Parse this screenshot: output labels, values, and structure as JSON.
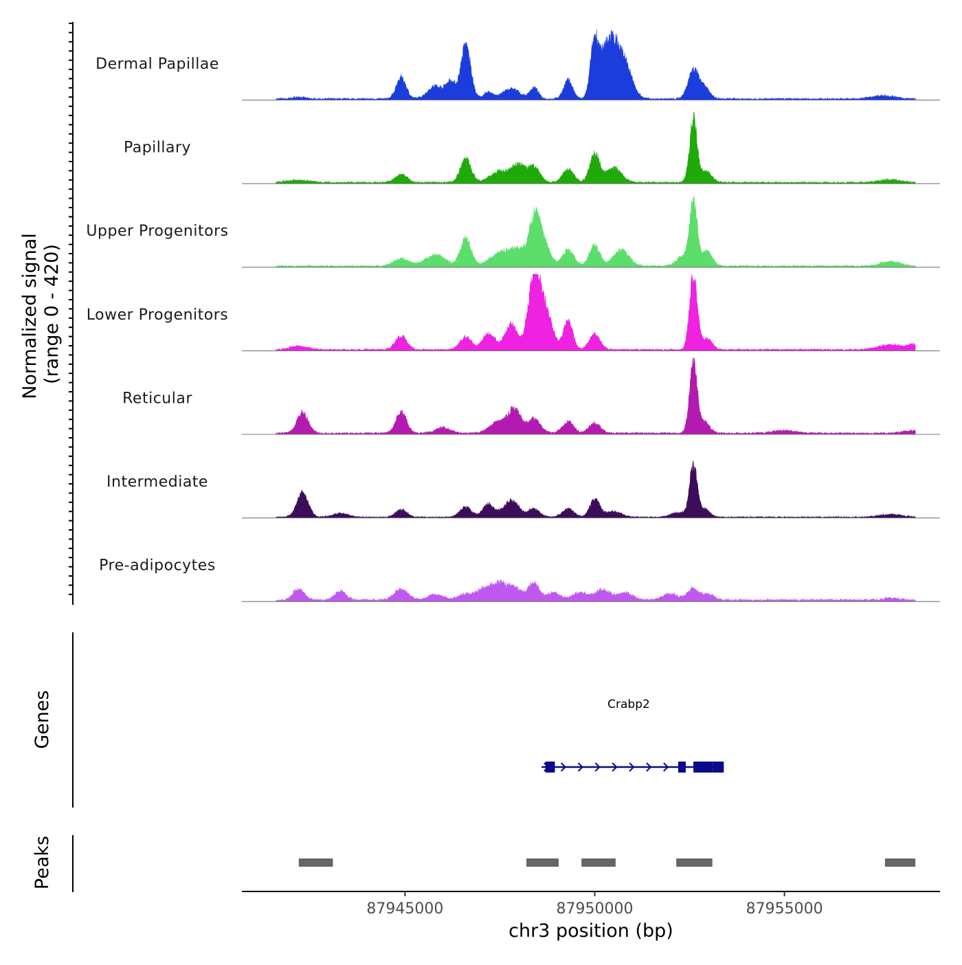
{
  "chart_data": {
    "type": "area",
    "title": "",
    "ylabel": "Normalized signal",
    "ylabel_range": "(range 0 - 420)",
    "y_range": [
      0,
      420
    ],
    "xlabel": "chr3 position (bp)",
    "chromosome": "chr3",
    "x_range": [
      87940700,
      87959100
    ],
    "x_ticks": [
      87945000,
      87950000,
      87955000
    ],
    "x_tick_labels": [
      "87945000",
      "87950000",
      "87955000"
    ],
    "genes_label": "Genes",
    "peaks_label": "Peaks",
    "gene": {
      "name": "Crabp2",
      "start": 87948600,
      "end": 87953400,
      "strand": "+",
      "color": "#0a0a8a",
      "exons": [
        [
          87948700,
          87948950
        ],
        [
          87952200,
          87952400
        ],
        [
          87952600,
          87953100
        ],
        [
          87953100,
          87953400
        ]
      ]
    },
    "peaks": [
      [
        87942200,
        87943100
      ],
      [
        87948200,
        87949050
      ],
      [
        87949650,
        87950550
      ],
      [
        87952150,
        87953100
      ],
      [
        87957650,
        87958450
      ]
    ],
    "peak_color": "#666666",
    "data_start": 87941600,
    "data_end": 87958450,
    "tracks": [
      {
        "name": "Dermal Papillae",
        "color": "#1a3ddb",
        "baseline": 8,
        "peaks": [
          [
            87942200,
            10,
            150
          ],
          [
            87944900,
            115,
            130
          ],
          [
            87945800,
            70,
            200
          ],
          [
            87946200,
            90,
            120
          ],
          [
            87946600,
            290,
            130
          ],
          [
            87947200,
            35,
            130
          ],
          [
            87947800,
            55,
            220
          ],
          [
            87948400,
            60,
            110
          ],
          [
            87949300,
            100,
            120
          ],
          [
            87950000,
            310,
            110
          ],
          [
            87950300,
            160,
            160
          ],
          [
            87950500,
            210,
            200
          ],
          [
            87950800,
            150,
            200
          ],
          [
            87952600,
            160,
            140
          ],
          [
            87952900,
            60,
            130
          ],
          [
            87957600,
            18,
            300
          ]
        ]
      },
      {
        "name": "Papillary",
        "color": "#1faa0a",
        "baseline": 8,
        "peaks": [
          [
            87942200,
            12,
            300
          ],
          [
            87944900,
            45,
            160
          ],
          [
            87946600,
            130,
            140
          ],
          [
            87947500,
            60,
            250
          ],
          [
            87948000,
            90,
            180
          ],
          [
            87948400,
            80,
            160
          ],
          [
            87949300,
            70,
            150
          ],
          [
            87950000,
            155,
            130
          ],
          [
            87950500,
            80,
            200
          ],
          [
            87952600,
            340,
            100
          ],
          [
            87952950,
            60,
            140
          ],
          [
            87957800,
            15,
            300
          ]
        ]
      },
      {
        "name": "Upper Progenitors",
        "color": "#5bde6a",
        "baseline": 8,
        "peaks": [
          [
            87944900,
            40,
            200
          ],
          [
            87945800,
            60,
            260
          ],
          [
            87946600,
            150,
            140
          ],
          [
            87947500,
            70,
            260
          ],
          [
            87948000,
            90,
            220
          ],
          [
            87948400,
            180,
            130
          ],
          [
            87948600,
            160,
            180
          ],
          [
            87949300,
            90,
            150
          ],
          [
            87950000,
            110,
            140
          ],
          [
            87950700,
            90,
            200
          ],
          [
            87952300,
            50,
            150
          ],
          [
            87952600,
            350,
            100
          ],
          [
            87952950,
            80,
            140
          ],
          [
            87957800,
            25,
            250
          ]
        ]
      },
      {
        "name": "Lower Progenitors",
        "color": "#ee22e0",
        "baseline": 8,
        "peaks": [
          [
            87942200,
            18,
            250
          ],
          [
            87944900,
            75,
            150
          ],
          [
            87946600,
            70,
            150
          ],
          [
            87947200,
            90,
            160
          ],
          [
            87947800,
            140,
            170
          ],
          [
            87948400,
            390,
            150
          ],
          [
            87948700,
            200,
            180
          ],
          [
            87949300,
            160,
            120
          ],
          [
            87950000,
            85,
            140
          ],
          [
            87952600,
            410,
            100
          ],
          [
            87952950,
            60,
            140
          ],
          [
            87957800,
            28,
            300
          ],
          [
            87958400,
            24,
            150
          ]
        ]
      },
      {
        "name": "Reticular",
        "color": "#b21ab0",
        "baseline": 8,
        "peaks": [
          [
            87942300,
            110,
            150
          ],
          [
            87944900,
            115,
            140
          ],
          [
            87946000,
            30,
            200
          ],
          [
            87947500,
            65,
            250
          ],
          [
            87947900,
            120,
            150
          ],
          [
            87948400,
            80,
            170
          ],
          [
            87949300,
            60,
            150
          ],
          [
            87950000,
            55,
            150
          ],
          [
            87952600,
            390,
            100
          ],
          [
            87952900,
            60,
            130
          ],
          [
            87955000,
            15,
            300
          ],
          [
            87958300,
            15,
            200
          ]
        ]
      },
      {
        "name": "Intermediate",
        "color": "#3c0e5a",
        "baseline": 6,
        "peaks": [
          [
            87942300,
            130,
            150
          ],
          [
            87943300,
            20,
            200
          ],
          [
            87944900,
            40,
            150
          ],
          [
            87946600,
            55,
            150
          ],
          [
            87947200,
            70,
            150
          ],
          [
            87947800,
            90,
            200
          ],
          [
            87948400,
            45,
            150
          ],
          [
            87949300,
            45,
            150
          ],
          [
            87950000,
            100,
            130
          ],
          [
            87950500,
            30,
            200
          ],
          [
            87952200,
            25,
            200
          ],
          [
            87952600,
            270,
            100
          ],
          [
            87952900,
            45,
            130
          ],
          [
            87957800,
            15,
            300
          ]
        ]
      },
      {
        "name": "Pre-adipocytes",
        "color": "#bf58ef",
        "baseline": 10,
        "peaks": [
          [
            87942200,
            60,
            150
          ],
          [
            87943300,
            50,
            150
          ],
          [
            87944900,
            60,
            180
          ],
          [
            87945800,
            30,
            200
          ],
          [
            87946600,
            30,
            200
          ],
          [
            87947100,
            60,
            200
          ],
          [
            87947500,
            80,
            200
          ],
          [
            87947900,
            60,
            200
          ],
          [
            87948400,
            90,
            140
          ],
          [
            87948900,
            40,
            180
          ],
          [
            87949600,
            40,
            200
          ],
          [
            87950200,
            55,
            200
          ],
          [
            87950800,
            40,
            200
          ],
          [
            87952000,
            35,
            200
          ],
          [
            87952600,
            60,
            150
          ],
          [
            87953000,
            30,
            150
          ],
          [
            87957800,
            12,
            200
          ]
        ]
      }
    ]
  }
}
